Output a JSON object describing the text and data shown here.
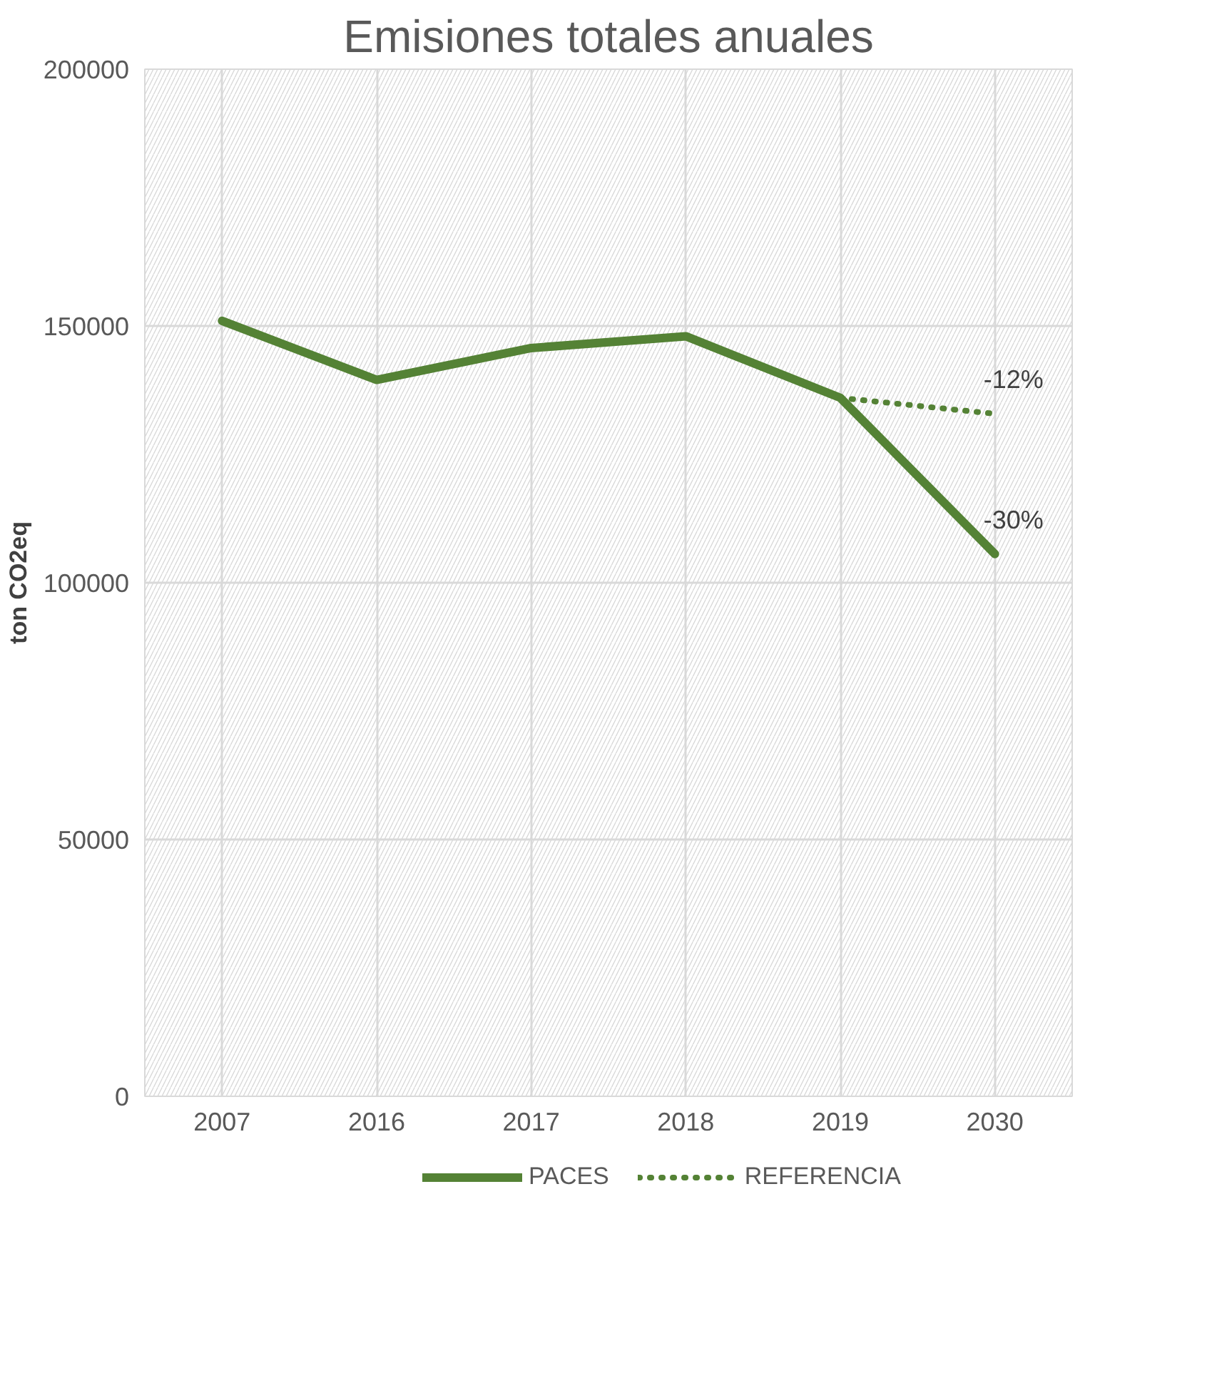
{
  "chart_data": {
    "type": "line",
    "title": "Emisiones totales anuales",
    "ylabel": "ton CO2eq",
    "categories": [
      "2007",
      "2016",
      "2017",
      "2018",
      "2019",
      "2030"
    ],
    "series": [
      {
        "name": "PACES",
        "color": "#548235",
        "line_style": "solid",
        "values": [
          151000,
          139500,
          145700,
          148000,
          136000,
          105600
        ]
      },
      {
        "name": "REFERENCIA",
        "color": "#548235",
        "line_style": "dotted",
        "values": [
          null,
          null,
          null,
          null,
          136000,
          132900
        ]
      }
    ],
    "annotations": [
      {
        "text": "-12%",
        "x": "2030",
        "y": 132900
      },
      {
        "text": "-30%",
        "x": "2030",
        "y": 105600
      }
    ],
    "ylim": [
      0,
      200000
    ],
    "yticks": [
      0,
      50000,
      100000,
      150000,
      200000
    ],
    "grid": true,
    "legend": "bottom",
    "marker": "none"
  }
}
